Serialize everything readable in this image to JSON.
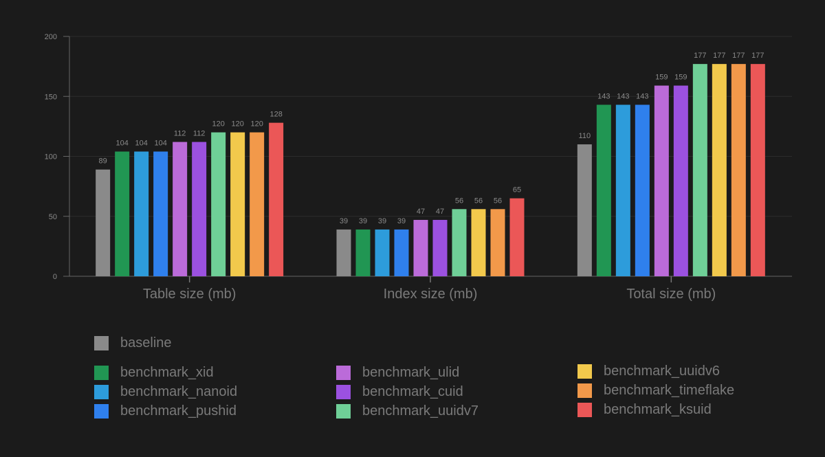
{
  "chart_data": {
    "type": "bar",
    "categories": [
      "Table size (mb)",
      "Index size (mb)",
      "Total size (mb)"
    ],
    "ylim": [
      0,
      200
    ],
    "yticks": [
      0,
      50,
      100,
      150,
      200
    ],
    "grid": true,
    "legend_position": "bottom",
    "series": [
      {
        "name": "baseline",
        "color": "#8a8a8a",
        "values": [
          89,
          39,
          110
        ]
      },
      {
        "name": "benchmark_xid",
        "color": "#219653",
        "values": [
          104,
          39,
          143
        ]
      },
      {
        "name": "benchmark_nanoid",
        "color": "#2d9cdb",
        "values": [
          104,
          39,
          143
        ]
      },
      {
        "name": "benchmark_pushid",
        "color": "#2f80ed",
        "values": [
          104,
          39,
          143
        ]
      },
      {
        "name": "benchmark_ulid",
        "color": "#bb6bd9",
        "values": [
          112,
          47,
          159
        ]
      },
      {
        "name": "benchmark_cuid",
        "color": "#9b51e0",
        "values": [
          112,
          47,
          159
        ]
      },
      {
        "name": "benchmark_uuidv7",
        "color": "#6fcf97",
        "values": [
          120,
          56,
          177
        ]
      },
      {
        "name": "benchmark_uuidv6",
        "color": "#f2c94c",
        "values": [
          120,
          56,
          177
        ]
      },
      {
        "name": "benchmark_timeflake",
        "color": "#f2994a",
        "values": [
          120,
          56,
          177
        ]
      },
      {
        "name": "benchmark_ksuid",
        "color": "#eb5757",
        "values": [
          128,
          65,
          177
        ]
      }
    ]
  }
}
